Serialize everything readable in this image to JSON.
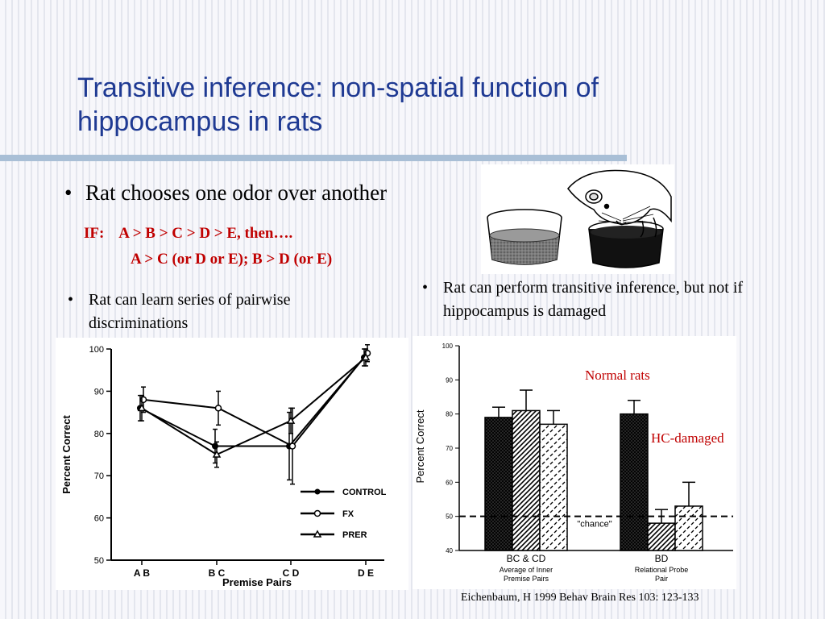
{
  "slide": {
    "title": "Transitive inference: non-spatial function of hippocampus in rats",
    "bullet_main": "Rat chooses one odor over another",
    "bullet_symbol": "•",
    "if_line1": "IF:    A > B > C > D > E, then….",
    "if_line2": "A > C (or D or E); B > D (or E)",
    "bullet_left": "Rat can learn series of pairwise discriminations",
    "bullet_right": "Rat can perform transitive inference, but not if hippocampus is damaged",
    "annotation_normal": "Normal rats",
    "annotation_hc": "HC-damaged",
    "citation": "Eichenbaum, H 1999 Behav Brain Res 103: 123-133",
    "accent_color": "#1f3a93",
    "highlight_color": "#c00000"
  },
  "chart_data": [
    {
      "type": "line",
      "xlabel": "Premise Pairs",
      "ylabel": "Percent Correct",
      "categories": [
        "A B",
        "B C",
        "C D",
        "D E"
      ],
      "ylim": [
        50,
        100
      ],
      "yticks": [
        "100",
        "90",
        "80",
        "70",
        "60",
        "50"
      ],
      "legend_position": "bottom-right",
      "series": [
        {
          "name": "CONTROL",
          "marker": "circle-filled",
          "values": [
            86,
            77,
            77,
            98
          ],
          "err": [
            3,
            4,
            8,
            2
          ]
        },
        {
          "name": "FX",
          "marker": "circle-open",
          "values": [
            88,
            86,
            77,
            99
          ],
          "err": [
            3,
            4,
            9,
            2
          ]
        },
        {
          "name": "PRER",
          "marker": "triangle-open",
          "values": [
            86,
            75,
            83,
            98
          ],
          "err": [
            3,
            3,
            3,
            2
          ]
        }
      ]
    },
    {
      "type": "bar",
      "ylabel": "Percent Correct",
      "ylim": [
        40,
        100
      ],
      "yticks": [
        "100",
        "90",
        "80",
        "70",
        "60",
        "50",
        "40"
      ],
      "chance_level": 50,
      "chance_label": "\"chance\"",
      "groups": [
        {
          "label": "BC & CD",
          "sublabel": "Average of Inner Premise Pairs",
          "values": [
            79,
            81,
            77
          ],
          "err": [
            3,
            6,
            4
          ]
        },
        {
          "label": "BD",
          "sublabel": "Relational Probe Pair",
          "values": [
            80,
            48,
            53
          ],
          "err": [
            4,
            4,
            7
          ]
        }
      ],
      "bar_patterns": [
        "dense-crosshatch",
        "diagonal-hatch",
        "dashed-hatch"
      ]
    }
  ]
}
